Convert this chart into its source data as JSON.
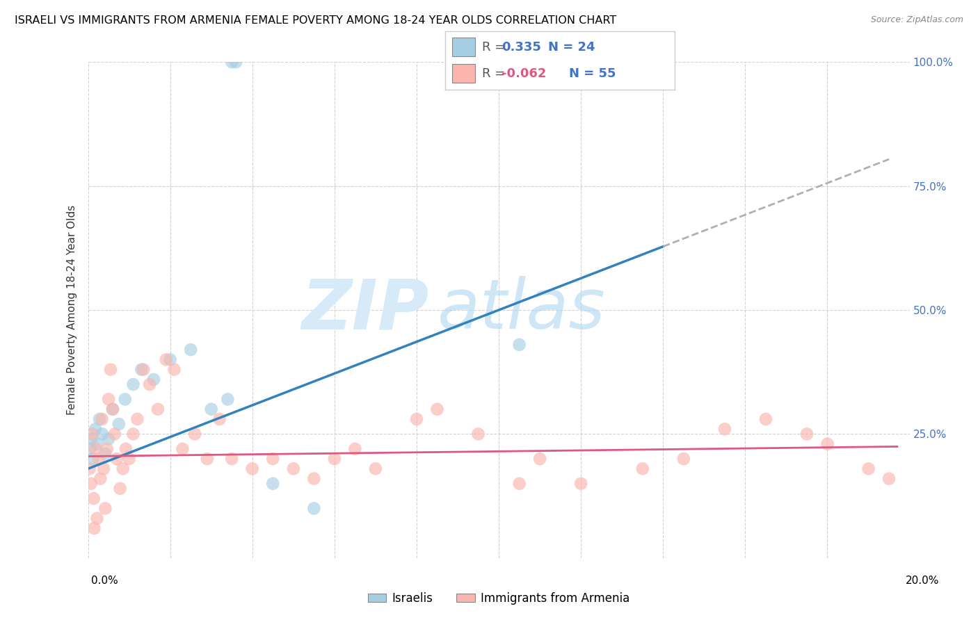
{
  "title": "ISRAELI VS IMMIGRANTS FROM ARMENIA FEMALE POVERTY AMONG 18-24 YEAR OLDS CORRELATION CHART",
  "source": "Source: ZipAtlas.com",
  "ylabel": "Female Poverty Among 18-24 Year Olds",
  "xlim": [
    0.0,
    20.0
  ],
  "ylim": [
    0.0,
    100.0
  ],
  "ytick_vals": [
    0,
    25,
    50,
    75,
    100
  ],
  "blue_R": 0.335,
  "blue_N": 24,
  "pink_R": -0.062,
  "pink_N": 55,
  "blue_scatter_color": "#a6cee3",
  "pink_scatter_color": "#fbb4ae",
  "blue_line_color": "#3182bd",
  "pink_line_color": "#e05780",
  "dash_color": "#b0b0b0",
  "legend_label_blue": "Israelis",
  "legend_label_pink": "Immigrants from Armenia",
  "watermark_zip": "ZIP",
  "watermark_atlas": "atlas",
  "r_label_color": "#4472c4",
  "n_label_color": "#4472c4",
  "blue_r_val_color": "#4472c4",
  "pink_r_val_color": "#e05780",
  "right_axis_color": "#4472c4",
  "blue_line_x0": 0.0,
  "blue_line_y0": 18.0,
  "blue_line_x1": 20.0,
  "blue_line_y1": 82.0,
  "blue_solid_end_x": 14.0,
  "pink_line_x0": 0.0,
  "pink_line_y0": 20.5,
  "pink_line_x1": 20.0,
  "pink_line_y1": 22.5,
  "israelis_x": [
    0.05,
    0.08,
    0.12,
    0.18,
    0.22,
    0.28,
    0.35,
    0.42,
    0.5,
    0.6,
    0.75,
    0.9,
    1.1,
    1.3,
    1.6,
    2.0,
    2.5,
    3.0,
    3.5,
    3.6,
    4.5,
    5.5,
    10.5,
    3.4
  ],
  "israelis_y": [
    22,
    24,
    20,
    26,
    23,
    28,
    25,
    21,
    24,
    30,
    27,
    32,
    35,
    38,
    36,
    40,
    42,
    30,
    100,
    100,
    15,
    10,
    43,
    32
  ],
  "armenia_x": [
    0.04,
    0.07,
    0.1,
    0.14,
    0.18,
    0.22,
    0.26,
    0.3,
    0.34,
    0.38,
    0.42,
    0.46,
    0.5,
    0.55,
    0.6,
    0.65,
    0.7,
    0.78,
    0.85,
    0.92,
    1.0,
    1.1,
    1.2,
    1.35,
    1.5,
    1.7,
    1.9,
    2.1,
    2.3,
    2.6,
    2.9,
    3.2,
    3.5,
    4.0,
    4.5,
    5.0,
    5.5,
    6.0,
    6.5,
    7.0,
    8.0,
    8.5,
    9.5,
    10.5,
    11.0,
    12.0,
    13.5,
    14.5,
    15.5,
    16.5,
    17.5,
    18.0,
    19.0,
    19.5,
    0.15
  ],
  "armenia_y": [
    18,
    15,
    25,
    12,
    22,
    8,
    20,
    16,
    28,
    18,
    10,
    22,
    32,
    38,
    30,
    25,
    20,
    14,
    18,
    22,
    20,
    25,
    28,
    38,
    35,
    30,
    40,
    38,
    22,
    25,
    20,
    28,
    20,
    18,
    20,
    18,
    16,
    20,
    22,
    18,
    28,
    30,
    25,
    15,
    20,
    15,
    18,
    20,
    26,
    28,
    25,
    23,
    18,
    16,
    6
  ]
}
